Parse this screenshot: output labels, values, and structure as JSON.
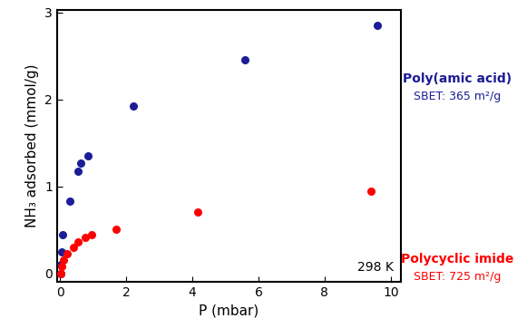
{
  "chart_data": {
    "type": "scatter",
    "x_label": "P (mbar)",
    "y_label": "NH₃ adsorbed (mmol/g)",
    "xlim": [
      -0.1,
      10.3
    ],
    "xticks": [
      0,
      2,
      4,
      6,
      8,
      10
    ],
    "ylim": [
      -0.1,
      3.03
    ],
    "yticks": [
      0,
      1,
      2,
      3
    ],
    "grid": false,
    "annotations": [
      "298 K"
    ],
    "series": [
      {
        "name": "Poly(amic acid)",
        "color": "#1c1c96",
        "marker": "circle",
        "surface_area": "SBET: 365 m²/g",
        "x": [
          0.02,
          0.03,
          0.05,
          0.08,
          0.3,
          0.55,
          0.63,
          0.85,
          2.2,
          5.6,
          9.6
        ],
        "values": [
          0.0,
          0.1,
          0.25,
          0.45,
          0.83,
          1.17,
          1.27,
          1.35,
          1.92,
          2.46,
          2.85
        ]
      },
      {
        "name": "Polycyclic imide",
        "color": "#ff0000",
        "marker": "circle",
        "surface_area": "SBET: 725 m²/g",
        "x": [
          0.02,
          0.05,
          0.1,
          0.2,
          0.4,
          0.55,
          0.75,
          0.95,
          1.7,
          4.15,
          9.4
        ],
        "values": [
          0.0,
          0.08,
          0.15,
          0.23,
          0.3,
          0.36,
          0.41,
          0.44,
          0.51,
          0.71,
          0.95
        ]
      }
    ]
  }
}
